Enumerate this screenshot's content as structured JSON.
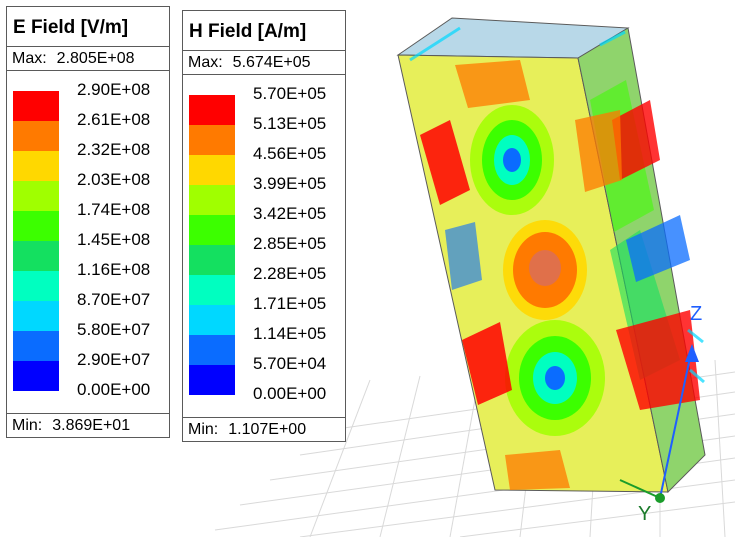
{
  "colors": {
    "scale": [
      "#0000ff",
      "#0a6cff",
      "#00d8ff",
      "#00ffc0",
      "#14e060",
      "#3cff00",
      "#a0ff00",
      "#ffd800",
      "#ff7a00",
      "#ff0000"
    ],
    "axis_label": "#1f5fff",
    "box_edge": "#5a5a5a"
  },
  "e_legend": {
    "title": "E Field [V/m]",
    "max_label": "Max:",
    "max_value": "2.805E+08",
    "min_label": "Min:",
    "min_value": "3.869E+01",
    "ticks": [
      "2.90E+08",
      "2.61E+08",
      "2.32E+08",
      "2.03E+08",
      "1.74E+08",
      "1.45E+08",
      "1.16E+08",
      "8.70E+07",
      "5.80E+07",
      "2.90E+07",
      "0.00E+00"
    ]
  },
  "h_legend": {
    "title": "H Field [A/m]",
    "max_label": "Max:",
    "max_value": "5.674E+05",
    "min_label": "Min:",
    "min_value": "1.107E+00",
    "ticks": [
      "5.70E+05",
      "5.13E+05",
      "4.56E+05",
      "3.99E+05",
      "3.42E+05",
      "2.85E+05",
      "2.28E+05",
      "1.71E+05",
      "1.14E+05",
      "5.70E+04",
      "0.00E+00"
    ]
  },
  "axes": {
    "z_label": "Z",
    "y_label": "Y"
  }
}
